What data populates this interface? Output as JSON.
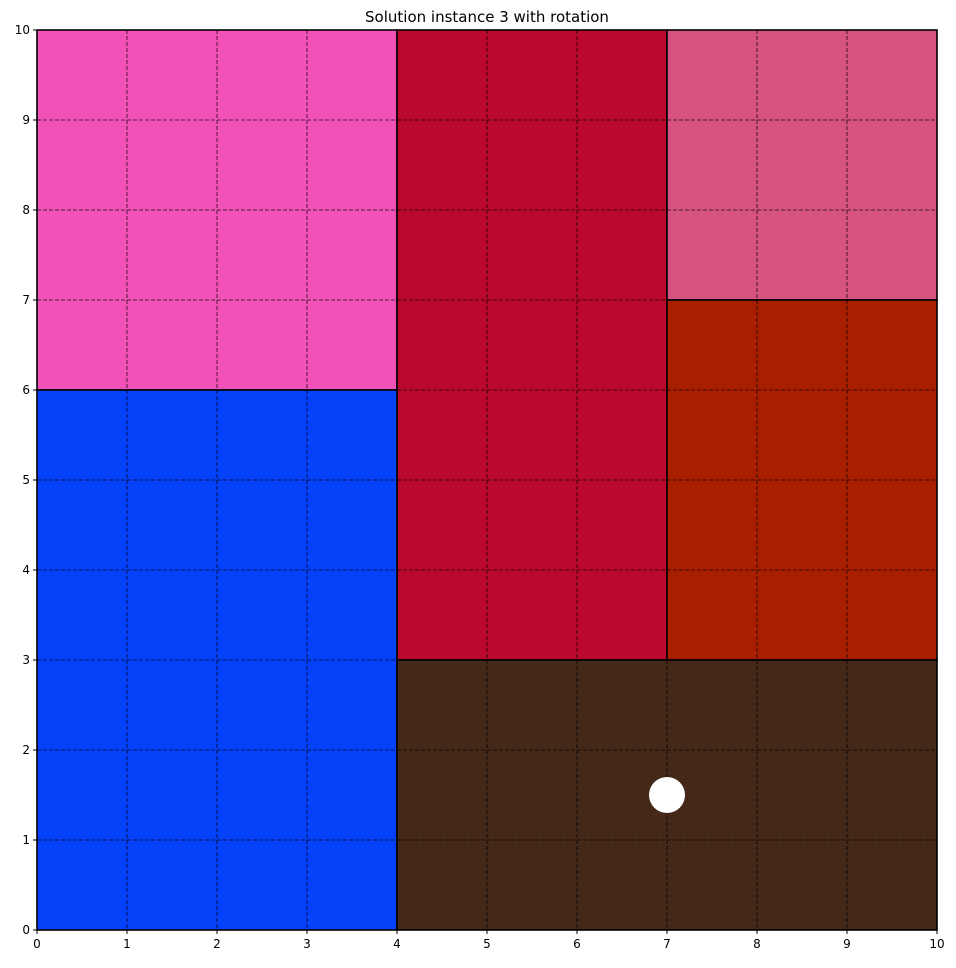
{
  "chart_data": {
    "type": "rectangle-packing",
    "title": "Solution instance 3 with rotation",
    "xlabel": "",
    "ylabel": "",
    "xlim": [
      0,
      10
    ],
    "ylim": [
      0,
      10
    ],
    "xticks": [
      "0",
      "1",
      "2",
      "3",
      "4",
      "5",
      "6",
      "7",
      "8",
      "9",
      "10"
    ],
    "yticks": [
      "0",
      "1",
      "2",
      "3",
      "4",
      "5",
      "6",
      "7",
      "8",
      "9",
      "10"
    ],
    "grid": true,
    "grid_style": "dashed",
    "rectangles": [
      {
        "x": 0,
        "y": 6,
        "width": 4,
        "height": 4,
        "color": "#f252b8"
      },
      {
        "x": 4,
        "y": 3,
        "width": 3,
        "height": 7,
        "color": "#ba092c"
      },
      {
        "x": 7,
        "y": 7,
        "width": 3,
        "height": 3,
        "color": "#d65380"
      },
      {
        "x": 0,
        "y": 0,
        "width": 4,
        "height": 6,
        "color": "#0541f8"
      },
      {
        "x": 7,
        "y": 3,
        "width": 3,
        "height": 4,
        "color": "#a81f00"
      },
      {
        "x": 4,
        "y": 0,
        "width": 6,
        "height": 3,
        "color": "#442818"
      }
    ],
    "markers": [
      {
        "x": 7,
        "y": 1.5,
        "color": "#ffffff"
      }
    ]
  }
}
